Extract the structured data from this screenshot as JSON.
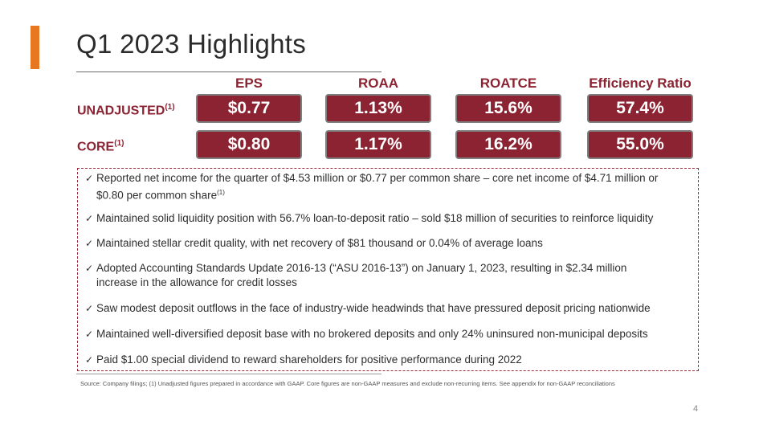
{
  "title": "Q1 2023 Highlights",
  "columns": [
    "EPS",
    "ROAA",
    "ROATCE",
    "Efficiency Ratio"
  ],
  "rows": [
    {
      "label": "UNADJUSTED",
      "note": "(1)",
      "values": [
        "$0.77",
        "1.13%",
        "15.6%",
        "57.4%"
      ]
    },
    {
      "label": "CORE",
      "note": "(1)",
      "values": [
        "$0.80",
        "1.17%",
        "16.2%",
        "55.0%"
      ]
    }
  ],
  "bullets": [
    {
      "line1": "Reported net income for the quarter of $4.53 million or $0.77 per common share – core net income of $4.71 million or",
      "line2": "$0.80 per common share",
      "note": "(1)"
    },
    {
      "line1": "Maintained solid liquidity position with 56.7% loan-to-deposit ratio – sold $18 million of securities to reinforce liquidity"
    },
    {
      "line1": "Maintained stellar credit quality, with net recovery of $81 thousand or 0.04% of average loans"
    },
    {
      "line1": "Adopted Accounting Standards Update 2016-13 (“ASU 2016-13”) on January 1, 2023, resulting in $2.34 million",
      "line2": "increase in the allowance for credit losses"
    },
    {
      "line1": "Saw modest deposit outflows in the face of industry-wide headwinds that have pressured deposit pricing nationwide"
    },
    {
      "line1": "Maintained well-diversified deposit base with no brokered deposits and only 24% uninsured non-municipal deposits"
    },
    {
      "line1": "Paid $1.00 special dividend to reward shareholders for positive performance during 2022"
    }
  ],
  "footnote": "Source: Company filings; (1) Unadjusted figures prepared in accordance with GAAP. Core figures are non-GAAP measures and exclude non-recurring items. See appendix for non-GAAP reconciliations",
  "page_number": "4",
  "colors": {
    "brand": "#8b2332",
    "accent": "#e87722"
  }
}
